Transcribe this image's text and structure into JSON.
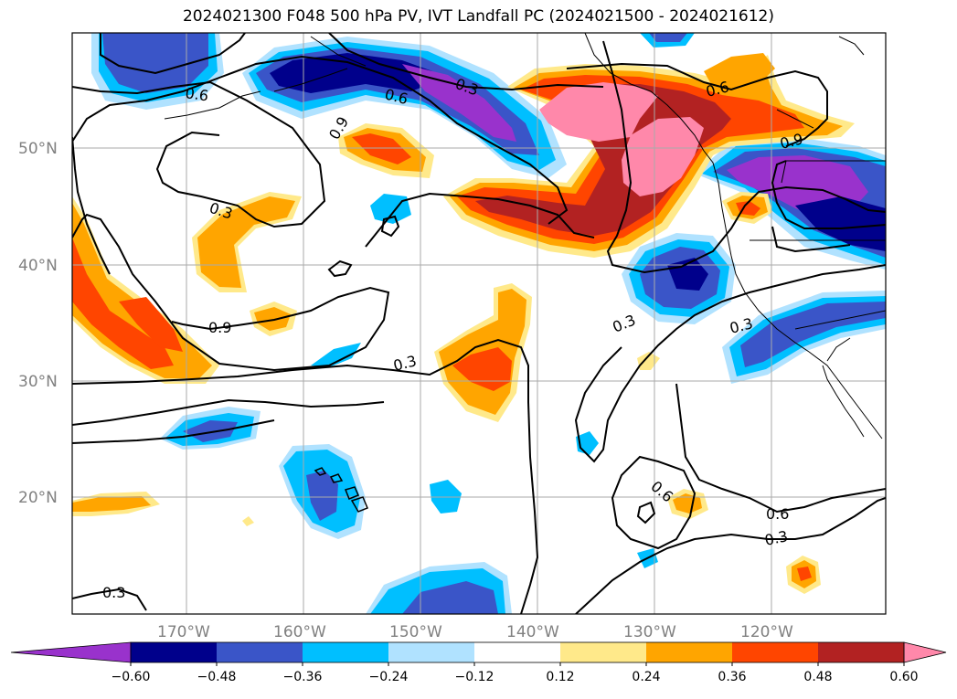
{
  "title": "2024021300 F048 500 hPa PV, IVT Landfall PC (2024021500 - 2024021612)",
  "map": {
    "lat_labels": [
      "50°N",
      "40°N",
      "30°N",
      "20°N"
    ],
    "lon_labels": [
      "170°W",
      "160°W",
      "150°W",
      "140°W",
      "130°W",
      "120°W"
    ],
    "contour_labels": [
      "0.6",
      "0.6",
      "0.3",
      "0.6",
      "0.9",
      "0.3",
      "0.9",
      "0.3",
      "0.3",
      "0.3",
      "0.6",
      "0.6",
      "0.3",
      "0.3",
      "0.9"
    ]
  },
  "colorbar": {
    "ticks": [
      "−0.60",
      "−0.48",
      "−0.36",
      "−0.24",
      "−0.12",
      "0.12",
      "0.24",
      "0.36",
      "0.48",
      "0.60"
    ],
    "colors": [
      "#9932cc",
      "#00008b",
      "#3a55c8",
      "#00bfff",
      "#b0e2ff",
      "#ffffff",
      "#ffe98a",
      "#ffa500",
      "#ff4500",
      "#b22222",
      "#ff88aa"
    ]
  },
  "palette": {
    "purple": "#9932cc",
    "navy": "#00008b",
    "blue": "#3a55c8",
    "cyan": "#00bfff",
    "lightblue": "#b0e2ff",
    "yellow": "#ffe98a",
    "orange": "#ffa500",
    "redorange": "#ff4500",
    "firebrick": "#b22222",
    "pink": "#ff88aa"
  }
}
